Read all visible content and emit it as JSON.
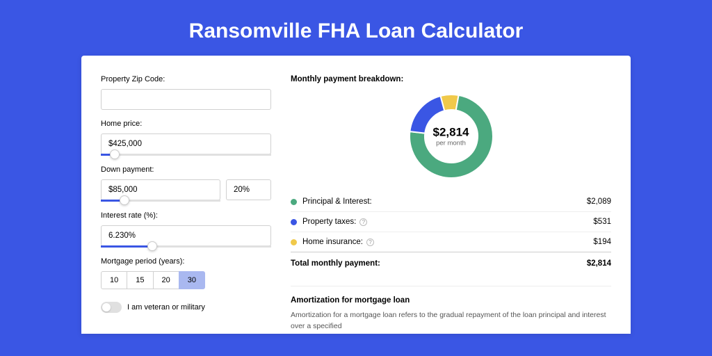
{
  "title": "Ransomville FHA Loan Calculator",
  "colors": {
    "page_bg": "#3a56e4",
    "card_bg": "#ffffff",
    "active_btn": "#a9b8f0",
    "series_principal": "#4ba97f",
    "series_taxes": "#3a56e4",
    "series_insurance": "#f0c94a"
  },
  "form": {
    "zip_label": "Property Zip Code:",
    "zip_value": "",
    "home_price_label": "Home price:",
    "home_price_value": "$425,000",
    "home_price_slider_pct": 8,
    "down_payment_label": "Down payment:",
    "down_payment_value": "$85,000",
    "down_payment_pct": "20%",
    "down_payment_slider_pct": 20,
    "interest_label": "Interest rate (%):",
    "interest_value": "6.230%",
    "interest_slider_pct": 30,
    "period_label": "Mortgage period (years):",
    "period_options": [
      "10",
      "15",
      "20",
      "30"
    ],
    "period_selected": "30",
    "veteran_label": "I am veteran or military"
  },
  "breakdown": {
    "title": "Monthly payment breakdown:",
    "donut": {
      "amount": "$2,814",
      "sub": "per month",
      "segments": [
        {
          "color": "#f0c94a",
          "pct": 7,
          "label": "Home insurance"
        },
        {
          "color": "#4ba97f",
          "pct": 74,
          "label": "Principal & Interest"
        },
        {
          "color": "#3a56e4",
          "pct": 19,
          "label": "Property taxes"
        }
      ]
    },
    "rows": [
      {
        "dot": "#4ba97f",
        "label": "Principal & Interest:",
        "help": false,
        "value": "$2,089"
      },
      {
        "dot": "#3a56e4",
        "label": "Property taxes:",
        "help": true,
        "value": "$531"
      },
      {
        "dot": "#f0c94a",
        "label": "Home insurance:",
        "help": true,
        "value": "$194"
      }
    ],
    "total_label": "Total monthly payment:",
    "total_value": "$2,814"
  },
  "amortization": {
    "title": "Amortization for mortgage loan",
    "text": "Amortization for a mortgage loan refers to the gradual repayment of the loan principal and interest over a specified"
  }
}
